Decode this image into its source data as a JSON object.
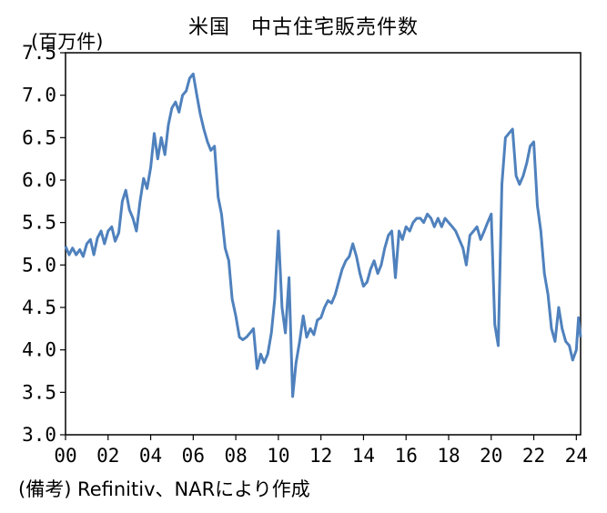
{
  "chart_data": {
    "type": "line",
    "title": "米国　中古住宅販売件数",
    "unit_label": "(百万件)",
    "source_note": "(備考) Refinitiv、NARにより作成",
    "xlabel": "",
    "ylabel": "",
    "ylim": [
      3.0,
      7.5
    ],
    "xlim": [
      2000,
      2024.2
    ],
    "grid": false,
    "line_color": "#4f81bd",
    "y_ticks": [
      "3.0",
      "3.5",
      "4.0",
      "4.5",
      "5.0",
      "5.5",
      "6.0",
      "6.5",
      "7.0",
      "7.5"
    ],
    "x_ticks": [
      "00",
      "02",
      "04",
      "06",
      "08",
      "10",
      "12",
      "14",
      "16",
      "18",
      "20",
      "22",
      "24"
    ],
    "series": [
      {
        "name": "",
        "points": [
          [
            2000.0,
            5.22
          ],
          [
            2000.17,
            5.12
          ],
          [
            2000.33,
            5.2
          ],
          [
            2000.5,
            5.12
          ],
          [
            2000.67,
            5.18
          ],
          [
            2000.83,
            5.1
          ],
          [
            2001.0,
            5.25
          ],
          [
            2001.17,
            5.3
          ],
          [
            2001.33,
            5.12
          ],
          [
            2001.5,
            5.32
          ],
          [
            2001.67,
            5.4
          ],
          [
            2001.83,
            5.25
          ],
          [
            2002.0,
            5.4
          ],
          [
            2002.17,
            5.45
          ],
          [
            2002.33,
            5.28
          ],
          [
            2002.5,
            5.38
          ],
          [
            2002.67,
            5.75
          ],
          [
            2002.83,
            5.88
          ],
          [
            2003.0,
            5.65
          ],
          [
            2003.17,
            5.55
          ],
          [
            2003.33,
            5.4
          ],
          [
            2003.5,
            5.75
          ],
          [
            2003.67,
            6.02
          ],
          [
            2003.83,
            5.9
          ],
          [
            2004.0,
            6.15
          ],
          [
            2004.17,
            6.55
          ],
          [
            2004.33,
            6.25
          ],
          [
            2004.5,
            6.5
          ],
          [
            2004.67,
            6.3
          ],
          [
            2004.83,
            6.65
          ],
          [
            2005.0,
            6.85
          ],
          [
            2005.17,
            6.92
          ],
          [
            2005.33,
            6.8
          ],
          [
            2005.5,
            7.0
          ],
          [
            2005.67,
            7.05
          ],
          [
            2005.83,
            7.2
          ],
          [
            2006.0,
            7.25
          ],
          [
            2006.17,
            7.0
          ],
          [
            2006.33,
            6.78
          ],
          [
            2006.5,
            6.6
          ],
          [
            2006.67,
            6.45
          ],
          [
            2006.83,
            6.35
          ],
          [
            2007.0,
            6.4
          ],
          [
            2007.17,
            5.8
          ],
          [
            2007.33,
            5.6
          ],
          [
            2007.5,
            5.2
          ],
          [
            2007.67,
            5.05
          ],
          [
            2007.83,
            4.6
          ],
          [
            2008.0,
            4.4
          ],
          [
            2008.17,
            4.15
          ],
          [
            2008.33,
            4.12
          ],
          [
            2008.5,
            4.15
          ],
          [
            2008.67,
            4.2
          ],
          [
            2008.83,
            4.25
          ],
          [
            2009.0,
            3.78
          ],
          [
            2009.17,
            3.95
          ],
          [
            2009.33,
            3.85
          ],
          [
            2009.5,
            3.95
          ],
          [
            2009.67,
            4.2
          ],
          [
            2009.83,
            4.6
          ],
          [
            2010.0,
            5.4
          ],
          [
            2010.17,
            4.5
          ],
          [
            2010.33,
            4.2
          ],
          [
            2010.5,
            4.85
          ],
          [
            2010.67,
            3.45
          ],
          [
            2010.83,
            3.85
          ],
          [
            2011.0,
            4.1
          ],
          [
            2011.17,
            4.4
          ],
          [
            2011.33,
            4.15
          ],
          [
            2011.5,
            4.25
          ],
          [
            2011.67,
            4.18
          ],
          [
            2011.83,
            4.35
          ],
          [
            2012.0,
            4.38
          ],
          [
            2012.17,
            4.5
          ],
          [
            2012.33,
            4.58
          ],
          [
            2012.5,
            4.55
          ],
          [
            2012.67,
            4.65
          ],
          [
            2012.83,
            4.8
          ],
          [
            2013.0,
            4.95
          ],
          [
            2013.17,
            5.05
          ],
          [
            2013.33,
            5.1
          ],
          [
            2013.5,
            5.25
          ],
          [
            2013.67,
            5.1
          ],
          [
            2013.83,
            4.9
          ],
          [
            2014.0,
            4.75
          ],
          [
            2014.17,
            4.8
          ],
          [
            2014.33,
            4.95
          ],
          [
            2014.5,
            5.05
          ],
          [
            2014.67,
            4.9
          ],
          [
            2014.83,
            5.0
          ],
          [
            2015.0,
            5.2
          ],
          [
            2015.17,
            5.35
          ],
          [
            2015.33,
            5.4
          ],
          [
            2015.5,
            4.85
          ],
          [
            2015.67,
            5.4
          ],
          [
            2015.83,
            5.3
          ],
          [
            2016.0,
            5.45
          ],
          [
            2016.17,
            5.4
          ],
          [
            2016.33,
            5.5
          ],
          [
            2016.5,
            5.55
          ],
          [
            2016.67,
            5.55
          ],
          [
            2016.83,
            5.5
          ],
          [
            2017.0,
            5.6
          ],
          [
            2017.17,
            5.55
          ],
          [
            2017.33,
            5.45
          ],
          [
            2017.5,
            5.55
          ],
          [
            2017.67,
            5.45
          ],
          [
            2017.83,
            5.55
          ],
          [
            2018.0,
            5.5
          ],
          [
            2018.17,
            5.45
          ],
          [
            2018.33,
            5.4
          ],
          [
            2018.5,
            5.3
          ],
          [
            2018.67,
            5.2
          ],
          [
            2018.83,
            5.0
          ],
          [
            2019.0,
            5.35
          ],
          [
            2019.17,
            5.4
          ],
          [
            2019.33,
            5.45
          ],
          [
            2019.5,
            5.3
          ],
          [
            2019.67,
            5.4
          ],
          [
            2019.83,
            5.5
          ],
          [
            2020.0,
            5.6
          ],
          [
            2020.17,
            4.3
          ],
          [
            2020.33,
            4.05
          ],
          [
            2020.5,
            5.95
          ],
          [
            2020.67,
            6.5
          ],
          [
            2020.83,
            6.55
          ],
          [
            2021.0,
            6.6
          ],
          [
            2021.17,
            6.05
          ],
          [
            2021.33,
            5.95
          ],
          [
            2021.5,
            6.05
          ],
          [
            2021.67,
            6.2
          ],
          [
            2021.83,
            6.4
          ],
          [
            2022.0,
            6.45
          ],
          [
            2022.17,
            5.7
          ],
          [
            2022.33,
            5.4
          ],
          [
            2022.5,
            4.9
          ],
          [
            2022.67,
            4.65
          ],
          [
            2022.83,
            4.25
          ],
          [
            2023.0,
            4.1
          ],
          [
            2023.17,
            4.5
          ],
          [
            2023.33,
            4.25
          ],
          [
            2023.5,
            4.1
          ],
          [
            2023.67,
            4.05
          ],
          [
            2023.83,
            3.88
          ],
          [
            2024.0,
            4.0
          ],
          [
            2024.1,
            4.38
          ],
          [
            2024.2,
            4.15
          ]
        ]
      }
    ]
  }
}
